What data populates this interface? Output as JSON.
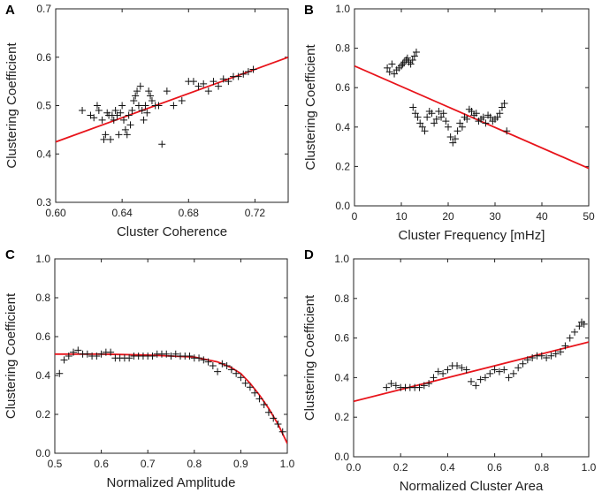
{
  "chart_data": [
    {
      "panel": "A",
      "type": "scatter",
      "xlabel": "Cluster Coherence",
      "ylabel": "Clustering Coefficient",
      "xlim": [
        0.6,
        0.74
      ],
      "ylim": [
        0.3,
        0.7
      ],
      "xticks": [
        0.6,
        0.64,
        0.68,
        0.72
      ],
      "yticks": [
        0.3,
        0.4,
        0.5,
        0.6,
        0.7
      ],
      "xtick_labels": [
        "0.60",
        "0.64",
        "0.68",
        "0.72"
      ],
      "ytick_labels": [
        "0.3",
        "0.4",
        "0.5",
        "0.6",
        "0.7"
      ],
      "fit_line": {
        "x": [
          0.6,
          0.74
        ],
        "y": [
          0.425,
          0.6
        ]
      },
      "points": [
        [
          0.616,
          0.49
        ],
        [
          0.621,
          0.48
        ],
        [
          0.623,
          0.475
        ],
        [
          0.625,
          0.5
        ],
        [
          0.626,
          0.49
        ],
        [
          0.628,
          0.47
        ],
        [
          0.629,
          0.43
        ],
        [
          0.63,
          0.44
        ],
        [
          0.631,
          0.485
        ],
        [
          0.632,
          0.48
        ],
        [
          0.633,
          0.43
        ],
        [
          0.634,
          0.48
        ],
        [
          0.635,
          0.47
        ],
        [
          0.636,
          0.49
        ],
        [
          0.637,
          0.48
        ],
        [
          0.638,
          0.44
        ],
        [
          0.639,
          0.485
        ],
        [
          0.64,
          0.5
        ],
        [
          0.641,
          0.47
        ],
        [
          0.642,
          0.45
        ],
        [
          0.643,
          0.44
        ],
        [
          0.644,
          0.48
        ],
        [
          0.645,
          0.46
        ],
        [
          0.646,
          0.49
        ],
        [
          0.647,
          0.51
        ],
        [
          0.648,
          0.52
        ],
        [
          0.649,
          0.53
        ],
        [
          0.65,
          0.5
        ],
        [
          0.651,
          0.54
        ],
        [
          0.652,
          0.49
        ],
        [
          0.653,
          0.47
        ],
        [
          0.654,
          0.5
        ],
        [
          0.655,
          0.485
        ],
        [
          0.656,
          0.53
        ],
        [
          0.657,
          0.52
        ],
        [
          0.658,
          0.51
        ],
        [
          0.66,
          0.5
        ],
        [
          0.662,
          0.5
        ],
        [
          0.664,
          0.42
        ],
        [
          0.667,
          0.53
        ],
        [
          0.671,
          0.5
        ],
        [
          0.676,
          0.51
        ],
        [
          0.68,
          0.55
        ],
        [
          0.683,
          0.55
        ],
        [
          0.686,
          0.54
        ],
        [
          0.689,
          0.545
        ],
        [
          0.692,
          0.53
        ],
        [
          0.695,
          0.55
        ],
        [
          0.698,
          0.54
        ],
        [
          0.701,
          0.555
        ],
        [
          0.704,
          0.55
        ],
        [
          0.707,
          0.56
        ],
        [
          0.71,
          0.56
        ],
        [
          0.713,
          0.565
        ],
        [
          0.716,
          0.57
        ],
        [
          0.719,
          0.575
        ]
      ]
    },
    {
      "panel": "B",
      "type": "scatter",
      "xlabel": "Cluster Frequency [mHz]",
      "ylabel": "Clustering Coefficient",
      "xlim": [
        0,
        50
      ],
      "ylim": [
        0,
        1.0
      ],
      "xticks": [
        0,
        10,
        20,
        30,
        40,
        50
      ],
      "yticks": [
        0.0,
        0.2,
        0.4,
        0.6,
        0.8,
        1.0
      ],
      "xtick_labels": [
        "0",
        "10",
        "20",
        "30",
        "40",
        "50"
      ],
      "ytick_labels": [
        "0.0",
        "0.2",
        "0.4",
        "0.6",
        "0.8",
        "1.0"
      ],
      "fit_line": {
        "x": [
          0,
          50
        ],
        "y": [
          0.71,
          0.19
        ]
      },
      "points": [
        [
          7,
          0.7
        ],
        [
          7.5,
          0.68
        ],
        [
          8,
          0.72
        ],
        [
          8.5,
          0.67
        ],
        [
          9,
          0.69
        ],
        [
          9.5,
          0.7
        ],
        [
          10,
          0.71
        ],
        [
          10.3,
          0.72
        ],
        [
          10.6,
          0.73
        ],
        [
          11,
          0.74
        ],
        [
          11.3,
          0.75
        ],
        [
          11.6,
          0.73
        ],
        [
          12,
          0.72
        ],
        [
          12.4,
          0.74
        ],
        [
          12.8,
          0.76
        ],
        [
          13.2,
          0.78
        ],
        [
          12.5,
          0.5
        ],
        [
          13,
          0.47
        ],
        [
          13.5,
          0.45
        ],
        [
          14,
          0.42
        ],
        [
          14.5,
          0.4
        ],
        [
          15,
          0.38
        ],
        [
          15.5,
          0.45
        ],
        [
          16,
          0.48
        ],
        [
          16.5,
          0.47
        ],
        [
          17,
          0.42
        ],
        [
          17.5,
          0.44
        ],
        [
          18,
          0.48
        ],
        [
          18.5,
          0.45
        ],
        [
          19,
          0.47
        ],
        [
          19.5,
          0.43
        ],
        [
          20,
          0.4
        ],
        [
          20.5,
          0.35
        ],
        [
          21,
          0.32
        ],
        [
          21.5,
          0.34
        ],
        [
          22,
          0.38
        ],
        [
          22.5,
          0.42
        ],
        [
          23,
          0.4
        ],
        [
          23.5,
          0.45
        ],
        [
          24,
          0.44
        ],
        [
          24.5,
          0.49
        ],
        [
          25,
          0.48
        ],
        [
          25.5,
          0.46
        ],
        [
          26,
          0.47
        ],
        [
          26.5,
          0.43
        ],
        [
          27,
          0.44
        ],
        [
          27.5,
          0.45
        ],
        [
          28,
          0.42
        ],
        [
          28.5,
          0.46
        ],
        [
          29,
          0.45
        ],
        [
          29.5,
          0.43
        ],
        [
          30,
          0.44
        ],
        [
          30.5,
          0.45
        ],
        [
          31,
          0.47
        ],
        [
          31.5,
          0.5
        ],
        [
          32,
          0.52
        ],
        [
          32.5,
          0.38
        ]
      ]
    },
    {
      "panel": "C",
      "type": "scatter",
      "xlabel": "Normalized Amplitude",
      "ylabel": "Clustering Coefficient",
      "xlim": [
        0.5,
        1.0
      ],
      "ylim": [
        0,
        1.0
      ],
      "xticks": [
        0.5,
        0.6,
        0.7,
        0.8,
        0.9,
        1.0
      ],
      "yticks": [
        0.0,
        0.2,
        0.4,
        0.6,
        0.8,
        1.0
      ],
      "xtick_labels": [
        "0.5",
        "0.6",
        "0.7",
        "0.8",
        "0.9",
        "1.0"
      ],
      "ytick_labels": [
        "0.0",
        "0.2",
        "0.4",
        "0.6",
        "0.8",
        "1.0"
      ],
      "fit_curve": {
        "x": [
          0.5,
          0.6,
          0.7,
          0.8,
          0.85,
          0.88,
          0.9,
          0.92,
          0.94,
          0.96,
          0.98,
          1.0
        ],
        "y": [
          0.51,
          0.51,
          0.505,
          0.495,
          0.47,
          0.44,
          0.41,
          0.36,
          0.3,
          0.23,
          0.15,
          0.05
        ]
      },
      "points": [
        [
          0.51,
          0.41
        ],
        [
          0.52,
          0.48
        ],
        [
          0.53,
          0.5
        ],
        [
          0.54,
          0.52
        ],
        [
          0.55,
          0.53
        ],
        [
          0.56,
          0.51
        ],
        [
          0.57,
          0.51
        ],
        [
          0.58,
          0.5
        ],
        [
          0.59,
          0.5
        ],
        [
          0.6,
          0.51
        ],
        [
          0.61,
          0.52
        ],
        [
          0.62,
          0.52
        ],
        [
          0.63,
          0.49
        ],
        [
          0.64,
          0.49
        ],
        [
          0.65,
          0.49
        ],
        [
          0.66,
          0.49
        ],
        [
          0.67,
          0.5
        ],
        [
          0.68,
          0.5
        ],
        [
          0.69,
          0.5
        ],
        [
          0.7,
          0.5
        ],
        [
          0.71,
          0.5
        ],
        [
          0.72,
          0.51
        ],
        [
          0.73,
          0.51
        ],
        [
          0.74,
          0.51
        ],
        [
          0.75,
          0.5
        ],
        [
          0.76,
          0.51
        ],
        [
          0.77,
          0.5
        ],
        [
          0.78,
          0.5
        ],
        [
          0.79,
          0.5
        ],
        [
          0.8,
          0.49
        ],
        [
          0.81,
          0.49
        ],
        [
          0.82,
          0.48
        ],
        [
          0.83,
          0.47
        ],
        [
          0.84,
          0.45
        ],
        [
          0.85,
          0.42
        ],
        [
          0.86,
          0.46
        ],
        [
          0.87,
          0.45
        ],
        [
          0.88,
          0.43
        ],
        [
          0.89,
          0.41
        ],
        [
          0.9,
          0.39
        ],
        [
          0.91,
          0.36
        ],
        [
          0.92,
          0.34
        ],
        [
          0.93,
          0.31
        ],
        [
          0.94,
          0.28
        ],
        [
          0.95,
          0.25
        ],
        [
          0.96,
          0.21
        ],
        [
          0.97,
          0.18
        ],
        [
          0.98,
          0.15
        ],
        [
          0.99,
          0.11
        ]
      ]
    },
    {
      "panel": "D",
      "type": "scatter",
      "xlabel": "Normalized Cluster Area",
      "ylabel": "Clustering Coefficient",
      "xlim": [
        0,
        1.0
      ],
      "ylim": [
        0,
        1.0
      ],
      "xticks": [
        0.0,
        0.2,
        0.4,
        0.6,
        0.8,
        1.0
      ],
      "yticks": [
        0.0,
        0.2,
        0.4,
        0.6,
        0.8,
        1.0
      ],
      "xtick_labels": [
        "0.0",
        "0.2",
        "0.4",
        "0.6",
        "0.8",
        "1.0"
      ],
      "ytick_labels": [
        "0.0",
        "0.2",
        "0.4",
        "0.6",
        "0.8",
        "1.0"
      ],
      "fit_line": {
        "x": [
          0,
          1.0
        ],
        "y": [
          0.28,
          0.58
        ]
      },
      "points": [
        [
          0.14,
          0.35
        ],
        [
          0.16,
          0.37
        ],
        [
          0.18,
          0.36
        ],
        [
          0.2,
          0.35
        ],
        [
          0.22,
          0.35
        ],
        [
          0.24,
          0.35
        ],
        [
          0.26,
          0.35
        ],
        [
          0.28,
          0.35
        ],
        [
          0.3,
          0.36
        ],
        [
          0.32,
          0.37
        ],
        [
          0.34,
          0.4
        ],
        [
          0.36,
          0.43
        ],
        [
          0.38,
          0.42
        ],
        [
          0.4,
          0.44
        ],
        [
          0.42,
          0.46
        ],
        [
          0.44,
          0.46
        ],
        [
          0.46,
          0.45
        ],
        [
          0.48,
          0.44
        ],
        [
          0.5,
          0.38
        ],
        [
          0.52,
          0.36
        ],
        [
          0.54,
          0.39
        ],
        [
          0.56,
          0.4
        ],
        [
          0.58,
          0.42
        ],
        [
          0.6,
          0.44
        ],
        [
          0.62,
          0.43
        ],
        [
          0.64,
          0.44
        ],
        [
          0.66,
          0.4
        ],
        [
          0.68,
          0.42
        ],
        [
          0.7,
          0.45
        ],
        [
          0.72,
          0.47
        ],
        [
          0.74,
          0.49
        ],
        [
          0.76,
          0.5
        ],
        [
          0.78,
          0.51
        ],
        [
          0.8,
          0.51
        ],
        [
          0.82,
          0.5
        ],
        [
          0.84,
          0.51
        ],
        [
          0.86,
          0.52
        ],
        [
          0.88,
          0.53
        ],
        [
          0.9,
          0.56
        ],
        [
          0.92,
          0.6
        ],
        [
          0.94,
          0.63
        ],
        [
          0.96,
          0.66
        ],
        [
          0.97,
          0.68
        ],
        [
          0.98,
          0.67
        ]
      ]
    }
  ]
}
